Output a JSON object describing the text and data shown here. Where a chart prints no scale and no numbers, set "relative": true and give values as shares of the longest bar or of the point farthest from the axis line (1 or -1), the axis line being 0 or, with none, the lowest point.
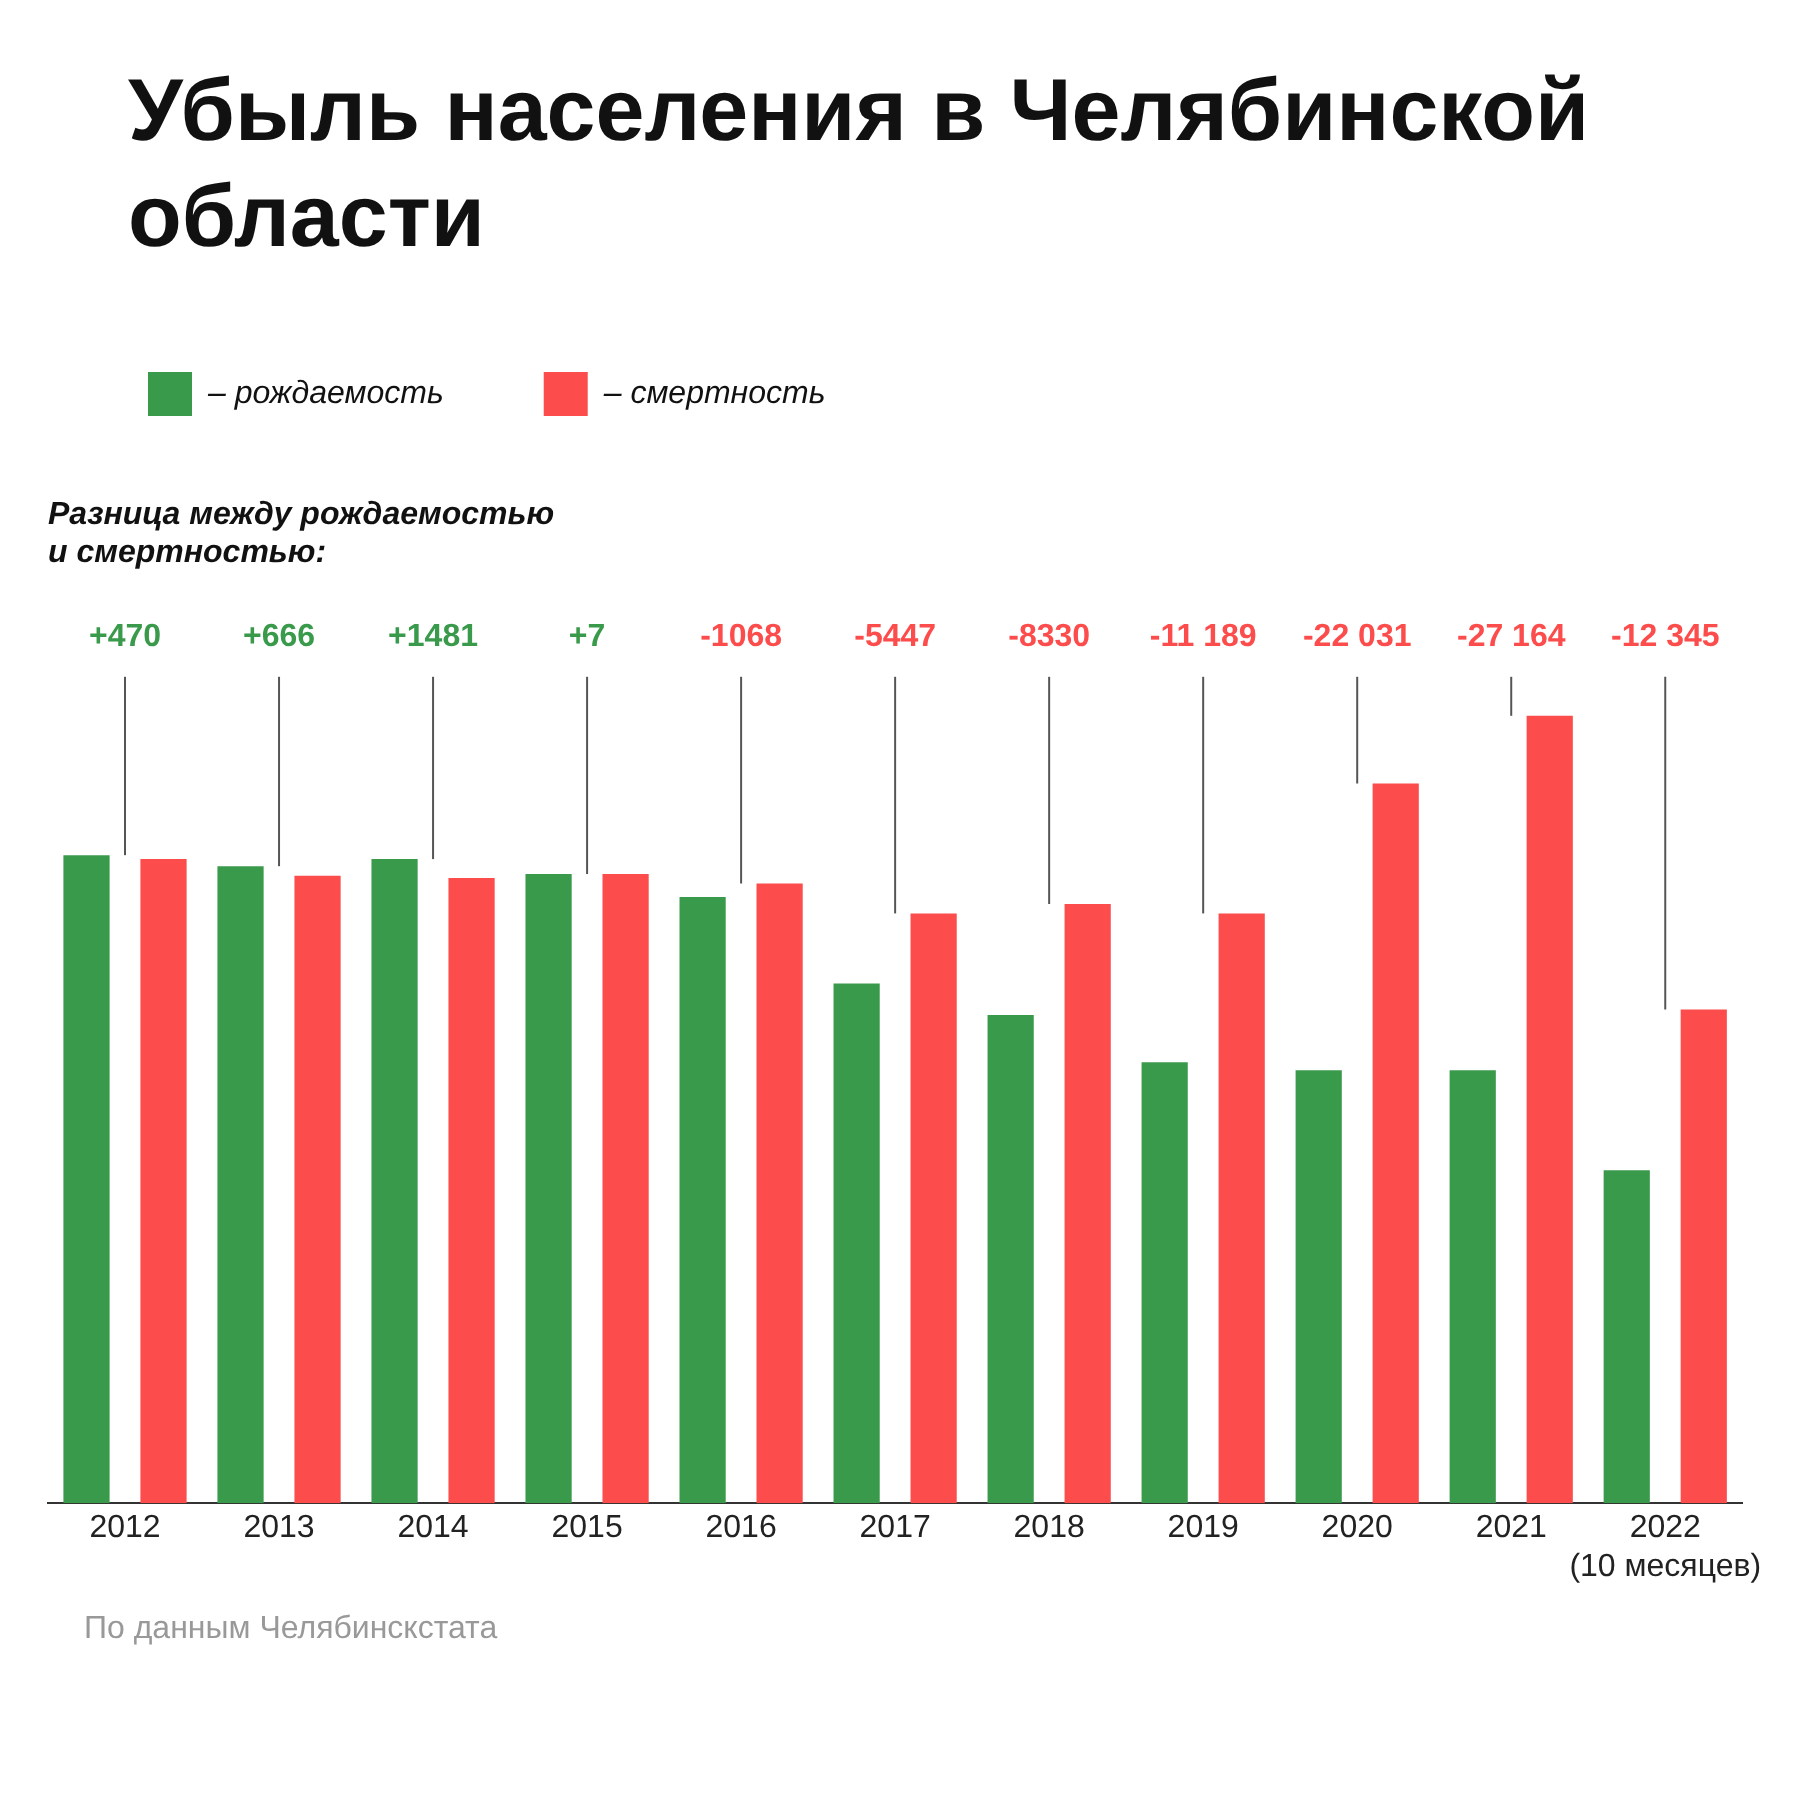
{
  "chart_data": {
    "type": "bar",
    "title": "Убыль населения в Челябинской области",
    "subtitle": "Разница между рождаемостью и смертностью:",
    "categories": [
      "2012",
      "2013",
      "2014",
      "2015",
      "2016",
      "2017",
      "2018",
      "2019",
      "2020",
      "2021",
      "2022 (10 месяцев)"
    ],
    "relative": true,
    "legend": "top left",
    "grid": false,
    "series": [
      {
        "name": "– рождаемость",
        "color": "#3a9a4b",
        "values": [
          0.823,
          0.809,
          0.818,
          0.799,
          0.77,
          0.66,
          0.62,
          0.56,
          0.55,
          0.55,
          0.423
        ]
      },
      {
        "name": "– смертность",
        "color": "#fc4c4c",
        "values": [
          0.818,
          0.797,
          0.794,
          0.799,
          0.787,
          0.749,
          0.761,
          0.749,
          0.914,
          1,
          0.627
        ]
      }
    ],
    "annotations": [
      "+470",
      "+666",
      "+1481",
      "+7",
      "-1068",
      "-5447",
      "-8330",
      "-11 189",
      "-22 031",
      "-27 164",
      "-12 345",
      "По данным Челябинскстата"
    ]
  }
}
